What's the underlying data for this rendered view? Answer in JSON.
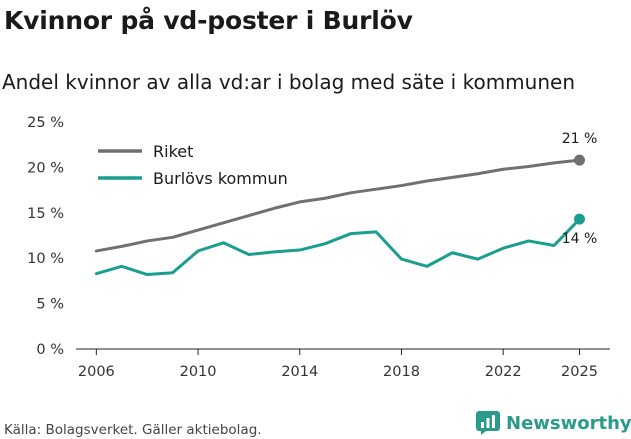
{
  "header": {
    "title": "Kvinnor på vd-poster i Burlöv",
    "subtitle": "Andel kvinnor av alla vd:ar i bolag med säte i kommunen"
  },
  "footer": {
    "source": "Källa: Bolagsverket. Gäller aktiebolag.",
    "brand": "Newsworthy"
  },
  "colors": {
    "riket": "#707074",
    "burlov": "#1a9e8f",
    "axis": "#222222",
    "brand": "#2a9b8a"
  },
  "chart_data": {
    "type": "line",
    "title": "Kvinnor på vd-poster i Burlöv",
    "subtitle": "Andel kvinnor av alla vd:ar i bolag med säte i kommunen",
    "xlabel": "",
    "ylabel": "",
    "xlim": [
      2005.2,
      2026.2
    ],
    "ylim": [
      0,
      25
    ],
    "x_ticks": [
      {
        "value": 2006,
        "label": "2006"
      },
      {
        "value": 2010,
        "label": "2010"
      },
      {
        "value": 2014,
        "label": "2014"
      },
      {
        "value": 2018,
        "label": "2018"
      },
      {
        "value": 2022,
        "label": "2022"
      },
      {
        "value": 2025,
        "label": "2025"
      }
    ],
    "y_ticks": [
      {
        "value": 0,
        "label": "0 %"
      },
      {
        "value": 5,
        "label": "5 %"
      },
      {
        "value": 10,
        "label": "10 %"
      },
      {
        "value": 15,
        "label": "15 %"
      },
      {
        "value": 20,
        "label": "20 %"
      },
      {
        "value": 25,
        "label": "25 %"
      }
    ],
    "grid": false,
    "legend": "top-left",
    "x": [
      2006,
      2007,
      2008,
      2009,
      2010,
      2011,
      2012,
      2013,
      2014,
      2015,
      2016,
      2017,
      2018,
      2019,
      2020,
      2021,
      2022,
      2023,
      2024,
      2025
    ],
    "series": [
      {
        "name": "Riket",
        "color_key": "riket",
        "values": [
          10.8,
          11.3,
          11.9,
          12.3,
          13.1,
          13.9,
          14.7,
          15.5,
          16.2,
          16.6,
          17.2,
          17.6,
          18.0,
          18.5,
          18.9,
          19.3,
          19.8,
          20.1,
          20.5,
          20.8
        ],
        "end_label": "21 %"
      },
      {
        "name": "Burlövs kommun",
        "color_key": "burlov",
        "values": [
          8.3,
          9.1,
          8.2,
          8.4,
          10.8,
          11.7,
          10.4,
          10.7,
          10.9,
          11.6,
          12.7,
          12.9,
          9.9,
          9.1,
          10.6,
          9.9,
          11.1,
          11.9,
          11.4,
          14.3
        ],
        "end_label": "14 %"
      }
    ]
  }
}
